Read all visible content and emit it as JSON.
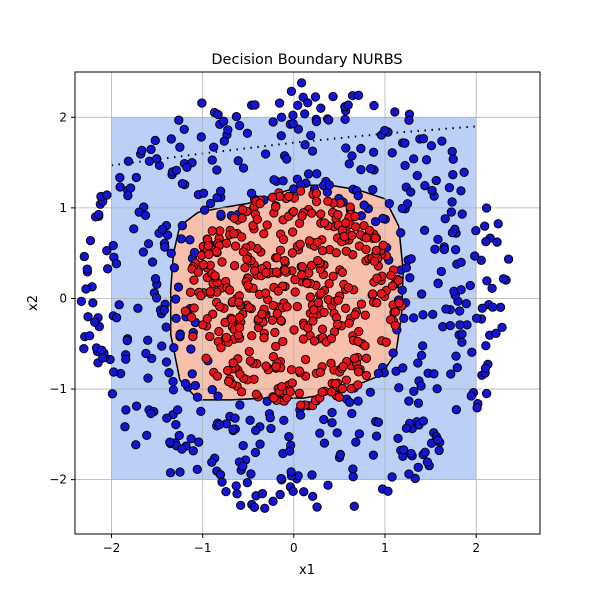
{
  "chart_data": {
    "type": "scatter",
    "title": "Decision Boundary NURBS",
    "xlabel": "x1",
    "ylabel": "x2",
    "xlim": [
      -2.4,
      2.7
    ],
    "ylim": [
      -2.6,
      2.5
    ],
    "xticks": [
      -2,
      -1,
      0,
      1,
      2
    ],
    "yticks": [
      -2,
      -1,
      0,
      1,
      2
    ],
    "xtick_labels": [
      "−2",
      "−1",
      "0",
      "1",
      "2"
    ],
    "ytick_labels": [
      "−2",
      "−1",
      "0",
      "1",
      "2"
    ],
    "grid": true,
    "decision_region": {
      "domain": [
        [
          -2,
          2
        ],
        [
          -2,
          2
        ]
      ],
      "background_class_color": "#bcd0f7",
      "inner_class_color": "#f6c0ac",
      "boundary_color": "#000000",
      "inner_boundary_polygon": [
        [
          -1.25,
          0.8
        ],
        [
          -1.05,
          0.95
        ],
        [
          -0.8,
          1.0
        ],
        [
          -0.5,
          1.05
        ],
        [
          -0.2,
          1.15
        ],
        [
          0.1,
          1.25
        ],
        [
          0.4,
          1.25
        ],
        [
          0.7,
          1.2
        ],
        [
          1.0,
          1.1
        ],
        [
          1.15,
          0.8
        ],
        [
          1.2,
          0.3
        ],
        [
          1.18,
          -0.2
        ],
        [
          1.12,
          -0.6
        ],
        [
          0.95,
          -0.85
        ],
        [
          0.7,
          -0.95
        ],
        [
          0.4,
          -1.05
        ],
        [
          0.1,
          -1.1
        ],
        [
          -0.3,
          -1.1
        ],
        [
          -0.7,
          -1.12
        ],
        [
          -1.05,
          -1.12
        ],
        [
          -1.25,
          -0.9
        ],
        [
          -1.35,
          -0.4
        ],
        [
          -1.35,
          0.1
        ],
        [
          -1.32,
          0.5
        ]
      ],
      "dotted_boundary": [
        [
          -2.0,
          1.47
        ],
        [
          -1.0,
          1.6
        ],
        [
          0.0,
          1.72
        ],
        [
          1.0,
          1.82
        ],
        [
          2.0,
          1.9
        ]
      ]
    },
    "series": [
      {
        "color": "#1414d2",
        "inner_radius": 1.1,
        "outer_radius": 2.4,
        "count": 520,
        "seed": 17
      },
      {
        "color": "#e8141b",
        "inner_radius": 0,
        "outer_radius": 1.2,
        "count": 460,
        "seed": 91
      }
    ]
  }
}
